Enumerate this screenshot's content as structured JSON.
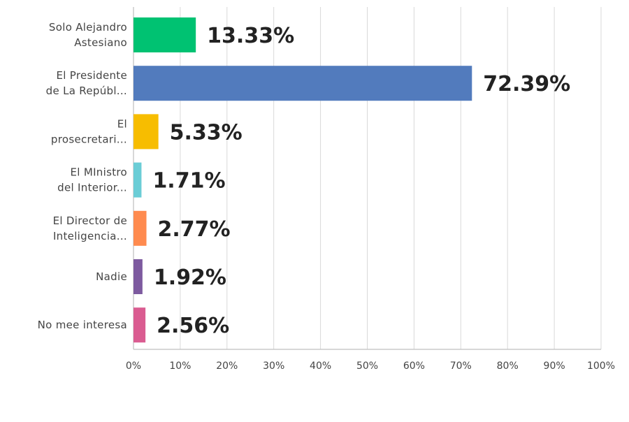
{
  "chart_data": {
    "type": "bar",
    "orientation": "horizontal",
    "title": "",
    "xlabel": "",
    "ylabel": "",
    "xlim": [
      0,
      100
    ],
    "x_ticks": [
      "0%",
      "10%",
      "20%",
      "30%",
      "40%",
      "50%",
      "60%",
      "70%",
      "80%",
      "90%",
      "100%"
    ],
    "x_tick_values": [
      0,
      10,
      20,
      30,
      40,
      50,
      60,
      70,
      80,
      90,
      100
    ],
    "grid": true,
    "legend": "none",
    "categories": [
      [
        "Solo Alejandro",
        "Astesiano"
      ],
      [
        "El Presidente",
        "de La Repúbl..."
      ],
      [
        "El",
        "prosecretari..."
      ],
      [
        "El MInistro",
        "del Interior..."
      ],
      [
        "El Director de",
        "Inteligencia..."
      ],
      [
        "Nadie"
      ],
      [
        "No mee interesa"
      ]
    ],
    "values": [
      13.33,
      72.39,
      5.33,
      1.71,
      2.77,
      1.92,
      2.56
    ],
    "data_labels": [
      "13.33%",
      "72.39%",
      "5.33%",
      "1.71%",
      "2.77%",
      "1.92%",
      "2.56%"
    ],
    "colors": [
      "#00c272",
      "#527bbd",
      "#f7bd00",
      "#6bcdd6",
      "#ff8b4f",
      "#7d5a9f",
      "#da5c91"
    ]
  }
}
